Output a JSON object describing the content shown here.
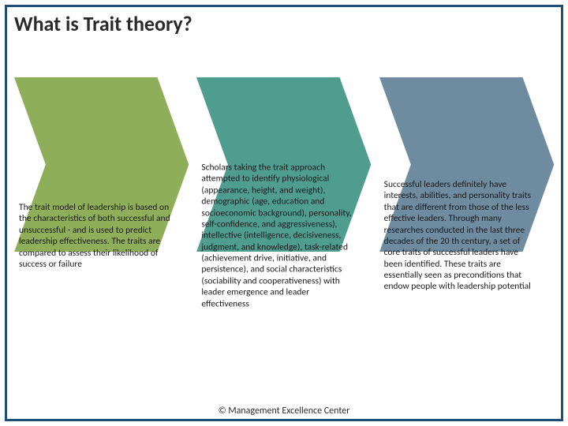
{
  "title": "What is Trait theory?",
  "footer": "© Management Excellence Center",
  "border_color": "#1f4e79",
  "panel_arrow_width_ratio": 0.18,
  "panels": [
    {
      "color": "#8fae59",
      "text": "The trait model of leadership is based on the characteristics of both successful and unsuccessful - and is used to predict leadership effectiveness. The traits are compared to assess their likelihood of  success or failure"
    },
    {
      "color": "#4f9d8f",
      "text": "Scholars taking the trait approach attempted to identify physiological (appearance, height, and weight), demographic (age, education and socioeconomic background), personality, self-confidence, and aggressiveness), intellective (intelligence, decisiveness, judgment, and knowledge), task-related (achievement drive, initiative, and persistence), and social characteristics (sociability and cooperativeness) with leader emergence and leader effectiveness"
    },
    {
      "color": "#6e8ba0",
      "text": "Successful leaders definitely have interests, abilities, and personality traits that are different from those of the less effective leaders. Through many researches conducted in the last three decades of the 20 th century, a set of core traits of successful leaders have been identified. These traits are essentially seen as preconditions that endow people with leadership potential"
    }
  ],
  "text_color": "#1a1a1a",
  "title_fontsize": 26,
  "body_fontsize": 11.5
}
